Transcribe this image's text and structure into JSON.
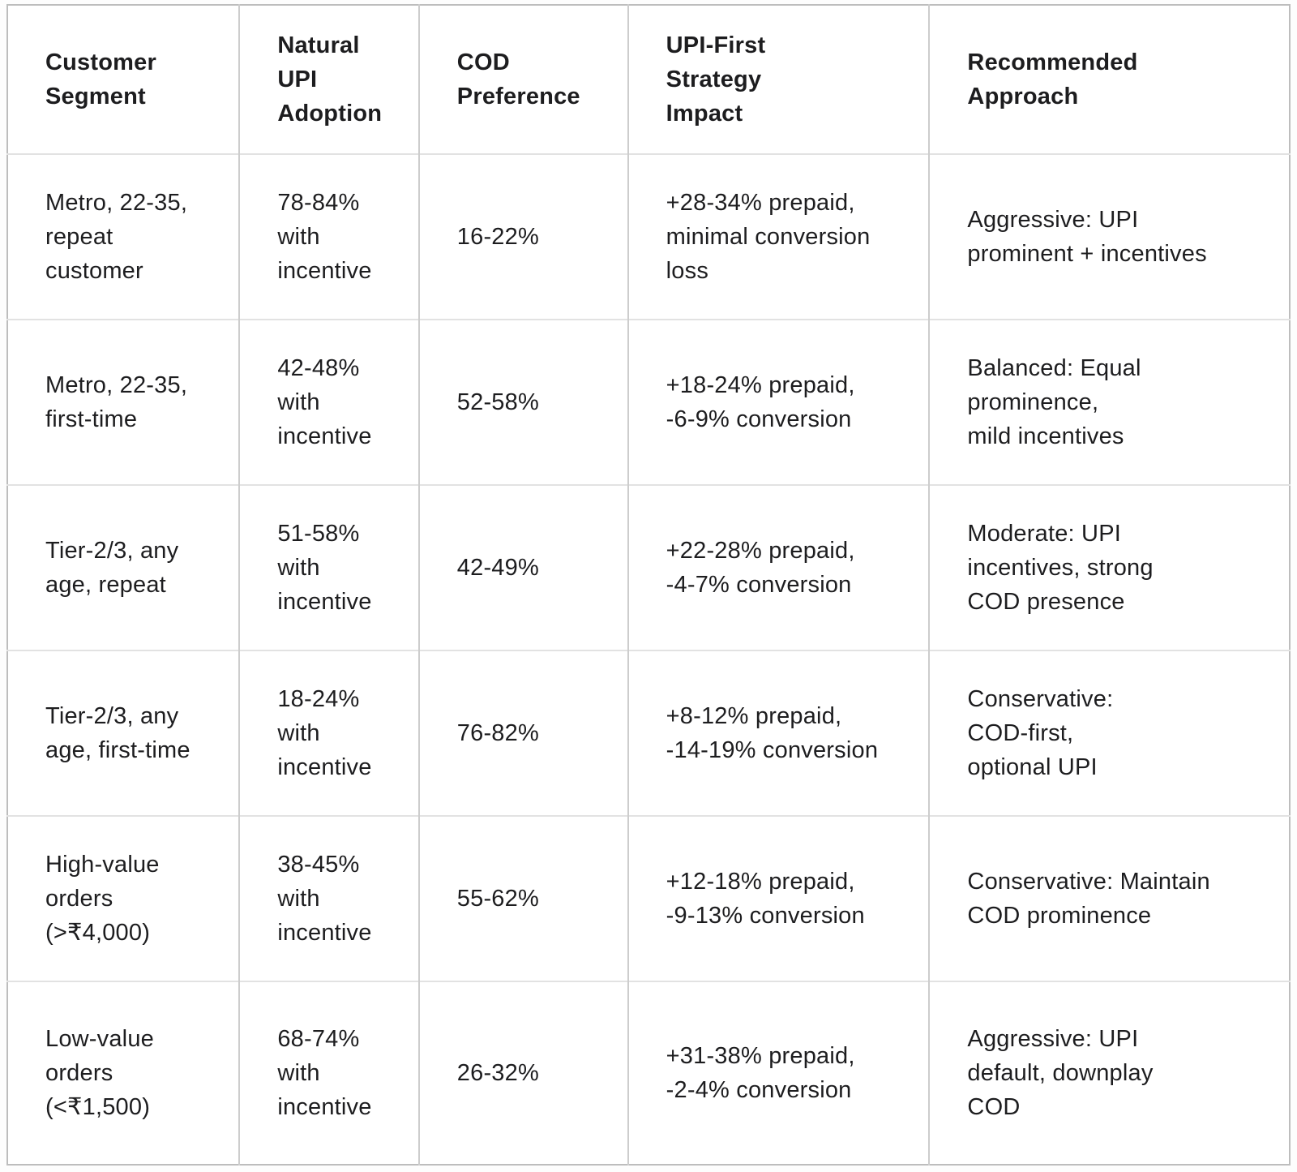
{
  "colors": {
    "text": "#1d1d1f",
    "background": "#ffffff",
    "border_outer": "#bdbdbd",
    "border_vertical": "#cdcdcd",
    "border_horizontal": "#e2e2e2"
  },
  "table": {
    "headers": [
      "Customer\nSegment",
      "Natural\nUPI\nAdoption",
      "COD\nPreference",
      "UPI-First\nStrategy\nImpact",
      "Recommended\nApproach"
    ],
    "rows": [
      {
        "cells": [
          "Metro, 22-35,\nrepeat\ncustomer",
          "78-84%\nwith\nincentive",
          "16-22%",
          "+28-34% prepaid,\nminimal conversion\nloss",
          "Aggressive: UPI\nprominent + incentives"
        ]
      },
      {
        "cells": [
          "Metro, 22-35,\nfirst-time",
          "42-48%\nwith\nincentive",
          "52-58%",
          "+18-24% prepaid,\n-6-9% conversion",
          "Balanced: Equal\nprominence,\nmild incentives"
        ]
      },
      {
        "cells": [
          "Tier-2/3, any\nage, repeat",
          "51-58%\nwith\nincentive",
          "42-49%",
          "+22-28% prepaid,\n-4-7% conversion",
          "Moderate: UPI\nincentives, strong\nCOD presence"
        ]
      },
      {
        "cells": [
          "Tier-2/3, any\nage, first-time",
          "18-24%\nwith\nincentive",
          "76-82%",
          "+8-12% prepaid,\n-14-19% conversion",
          "Conservative:\nCOD-first,\noptional UPI"
        ]
      },
      {
        "cells": [
          "High-value\norders\n(>₹4,000)",
          "38-45%\nwith\nincentive",
          "55-62%",
          "+12-18% prepaid,\n-9-13% conversion",
          "Conservative: Maintain\nCOD prominence"
        ]
      },
      {
        "cells": [
          "Low-value\norders\n(<₹1,500)",
          "68-74%\nwith\nincentive",
          "26-32%",
          "+31-38% prepaid,\n-2-4% conversion",
          "Aggressive: UPI\ndefault, downplay\nCOD"
        ]
      }
    ]
  }
}
